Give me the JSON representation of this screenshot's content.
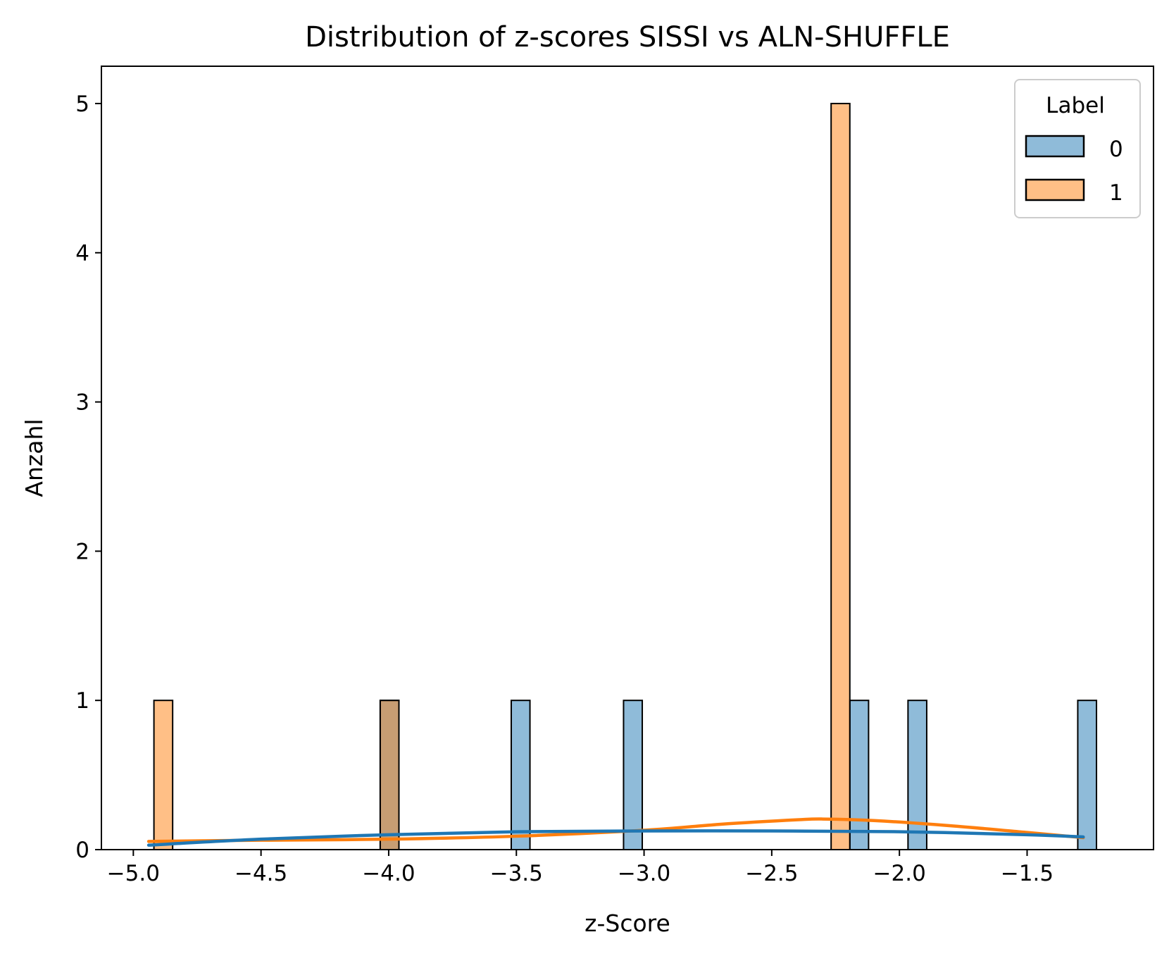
{
  "chart_data": {
    "type": "bar",
    "title": "Distribution of z-scores SISSI vs ALN-SHUFFLE",
    "xlabel": "z-Score",
    "ylabel": "Anzahl",
    "xlim": [
      -5.125,
      -1.005
    ],
    "ylim": [
      0,
      5.25
    ],
    "xticks": [
      -5.0,
      -4.5,
      -4.0,
      -3.5,
      -3.0,
      -2.5,
      -2.0,
      -1.5
    ],
    "xtick_labels": [
      "−5.0",
      "−4.5",
      "−4.0",
      "−3.5",
      "−3.0",
      "−2.5",
      "−2.0",
      "−1.5"
    ],
    "yticks": [
      0,
      1,
      2,
      3,
      4,
      5
    ],
    "ytick_labels": [
      "0",
      "1",
      "2",
      "3",
      "4",
      "5"
    ],
    "grid": false,
    "legend": {
      "title": "Label",
      "placement": "top-right",
      "entries": [
        {
          "label": "0",
          "color": "#1f77b4"
        },
        {
          "label": "1",
          "color": "#ff7f0e"
        }
      ]
    },
    "bin_width": 0.0733,
    "series": [
      {
        "name": "0",
        "color": "#1f77b4",
        "bars": [
          {
            "x": -4.0332,
            "count": 1
          },
          {
            "x": -3.5201,
            "count": 1
          },
          {
            "x": -3.0803,
            "count": 1
          },
          {
            "x": -2.1941,
            "count": 1
          },
          {
            "x": -1.9664,
            "count": 1
          },
          {
            "x": -1.3016,
            "count": 1
          }
        ],
        "kde": {
          "x": [
            -4.94,
            -4.5,
            -4.0,
            -3.5,
            -3.0,
            -2.5,
            -2.0,
            -1.5,
            -1.28
          ],
          "y": [
            0.03,
            0.07,
            0.1,
            0.12,
            0.125,
            0.125,
            0.12,
            0.1,
            0.085
          ]
        }
      },
      {
        "name": "1",
        "color": "#ff7f0e",
        "bars": [
          {
            "x": -4.9193,
            "count": 1
          },
          {
            "x": -4.0332,
            "count": 1
          },
          {
            "x": -2.2675,
            "count": 5
          }
        ],
        "kde": {
          "x": [
            -4.94,
            -4.5,
            -4.0,
            -3.5,
            -3.0,
            -2.7,
            -2.4,
            -2.3,
            -2.1,
            -1.8,
            -1.5,
            -1.28
          ],
          "y": [
            0.055,
            0.063,
            0.07,
            0.09,
            0.13,
            0.17,
            0.2,
            0.205,
            0.195,
            0.16,
            0.115,
            0.08
          ]
        }
      }
    ]
  }
}
